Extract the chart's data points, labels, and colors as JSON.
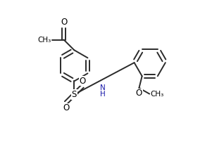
{
  "bg_color": "#ffffff",
  "line_color": "#2a2a2a",
  "label_color": "#000000",
  "nh_color": "#1a1aaa",
  "line_width": 1.4,
  "dbo": 0.013,
  "figsize": [
    3.18,
    2.12
  ],
  "dpi": 100,
  "xlim": [
    -0.1,
    1.05
  ],
  "ylim": [
    -0.08,
    0.92
  ]
}
